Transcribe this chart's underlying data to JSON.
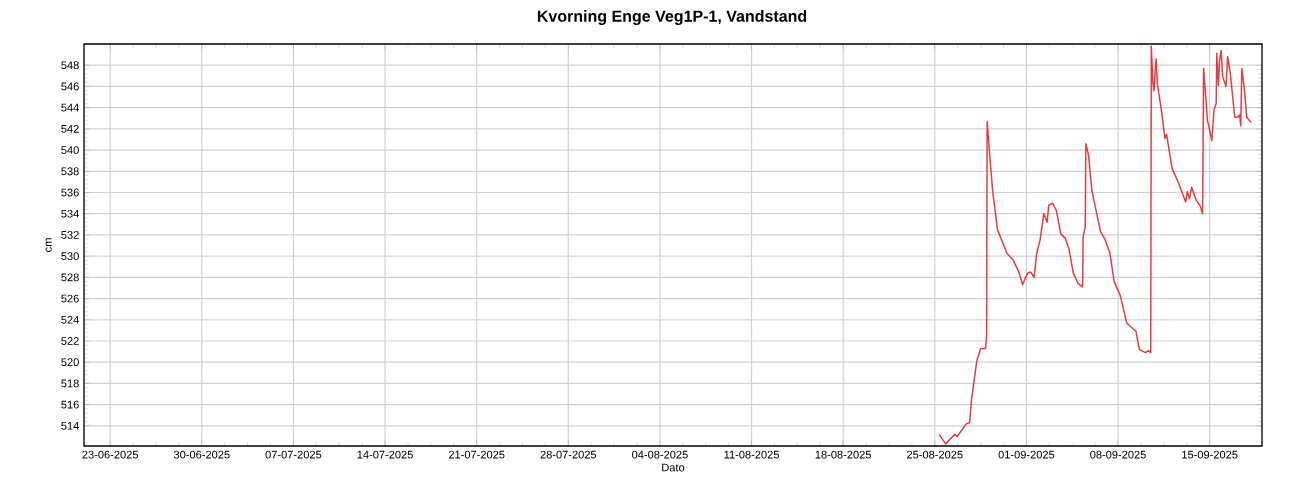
{
  "chart_data": {
    "type": "line",
    "title": "Kvorning Enge Veg1P-1, Vandstand",
    "xlabel": "Dato",
    "ylabel": "cm",
    "x": [
      "2025-08-25T08:00",
      "2025-08-25T20:00",
      "2025-08-26T13:00",
      "2025-08-26T17:00",
      "2025-08-27T10:00",
      "2025-08-27T16:00",
      "2025-08-27T19:00",
      "2025-08-28T05:00",
      "2025-08-28T12:00",
      "2025-08-28T21:00",
      "2025-08-28T23:00",
      "2025-08-29T00:00",
      "2025-08-29T04:00",
      "2025-08-29T10:00",
      "2025-08-29T19:00",
      "2025-08-30T12:00",
      "2025-08-31T00:00",
      "2025-08-31T11:00",
      "2025-08-31T17:00",
      "2025-09-01T02:00",
      "2025-09-01T08:00",
      "2025-09-01T14:00",
      "2025-09-01T19:00",
      "2025-09-02T01:00",
      "2025-09-02T08:00",
      "2025-09-02T14:00",
      "2025-09-02T17:00",
      "2025-09-03T00:00",
      "2025-09-03T07:00",
      "2025-09-03T15:00",
      "2025-09-03T23:00",
      "2025-09-04T06:00",
      "2025-09-04T14:00",
      "2025-09-04T23:00",
      "2025-09-05T07:00",
      "2025-09-05T08:00",
      "2025-09-05T12:00",
      "2025-09-05T13:00",
      "2025-09-05T18:00",
      "2025-09-06T00:00",
      "2025-09-06T09:00",
      "2025-09-06T16:00",
      "2025-09-07T00:00",
      "2025-09-07T09:00",
      "2025-09-07T17:00",
      "2025-09-08T04:00",
      "2025-09-08T16:00",
      "2025-09-09T09:00",
      "2025-09-09T15:00",
      "2025-09-10T02:00",
      "2025-09-10T08:00",
      "2025-09-10T12:00",
      "2025-09-10T13:00",
      "2025-09-10T16:00",
      "2025-09-10T18:00",
      "2025-09-10T20:00",
      "2025-09-10T22:00",
      "2025-09-11T00:00",
      "2025-09-11T08:00",
      "2025-09-11T14:00",
      "2025-09-11T17:00",
      "2025-09-12T03:00",
      "2025-09-12T15:00",
      "2025-09-13T04:00",
      "2025-09-13T07:00",
      "2025-09-13T11:00",
      "2025-09-13T15:00",
      "2025-09-13T23:00",
      "2025-09-14T07:00",
      "2025-09-14T11:00",
      "2025-09-14T13:00",
      "2025-09-14T16:00",
      "2025-09-14T20:00",
      "2025-09-15T04:00",
      "2025-09-15T08:00",
      "2025-09-15T12:00",
      "2025-09-15T13:00",
      "2025-09-15T16:00",
      "2025-09-15T18:00",
      "2025-09-15T21:00",
      "2025-09-16T00:00",
      "2025-09-16T06:00",
      "2025-09-16T09:00",
      "2025-09-16T14:00",
      "2025-09-16T22:00",
      "2025-09-17T03:00",
      "2025-09-17T07:00",
      "2025-09-17T09:00",
      "2025-09-17T11:00",
      "2025-09-17T16:00",
      "2025-09-17T20:00",
      "2025-09-18T04:00"
    ],
    "series": [
      {
        "color": "#e83a3a",
        "values": [
          513.2,
          512.3,
          513.2,
          513.0,
          514.2,
          514.3,
          516.3,
          520.1,
          521.3,
          521.3,
          522.4,
          542.7,
          540.0,
          536.2,
          532.5,
          530.3,
          529.6,
          528.4,
          527.3,
          528.4,
          528.5,
          528.0,
          530.3,
          531.5,
          534.0,
          533.2,
          534.8,
          535.0,
          534.3,
          532.1,
          531.7,
          530.7,
          528.4,
          527.4,
          527.1,
          531.8,
          532.8,
          540.6,
          539.5,
          536.2,
          534.0,
          532.3,
          531.6,
          530.3,
          527.6,
          526.3,
          523.7,
          522.9,
          521.2,
          520.9,
          521.1,
          520.9,
          549.8,
          546.3,
          545.6,
          547.5,
          548.6,
          546.3,
          543.6,
          541.1,
          541.5,
          538.3,
          536.9,
          535.1,
          536.1,
          535.4,
          536.5,
          535.3,
          534.7,
          534.0,
          547.7,
          545.6,
          542.8,
          540.9,
          543.8,
          544.4,
          549.1,
          546.1,
          548.3,
          549.4,
          546.9,
          546.0,
          548.8,
          547.2,
          543.1,
          543.1,
          543.3,
          542.3,
          547.7,
          545.6,
          543.1,
          542.6
        ]
      }
    ],
    "xlim": [
      "2025-06-21",
      "2025-09-19"
    ],
    "xticks": [
      {
        "value": "2025-06-23",
        "label": "23-06-2025"
      },
      {
        "value": "2025-06-30",
        "label": "30-06-2025"
      },
      {
        "value": "2025-07-07",
        "label": "07-07-2025"
      },
      {
        "value": "2025-07-14",
        "label": "14-07-2025"
      },
      {
        "value": "2025-07-21",
        "label": "21-07-2025"
      },
      {
        "value": "2025-07-28",
        "label": "28-07-2025"
      },
      {
        "value": "2025-08-04",
        "label": "04-08-2025"
      },
      {
        "value": "2025-08-11",
        "label": "11-08-2025"
      },
      {
        "value": "2025-08-18",
        "label": "18-08-2025"
      },
      {
        "value": "2025-08-25",
        "label": "25-08-2025"
      },
      {
        "value": "2025-09-01",
        "label": "01-09-2025"
      },
      {
        "value": "2025-09-08",
        "label": "08-09-2025"
      },
      {
        "value": "2025-09-15",
        "label": "15-09-2025"
      }
    ],
    "ylim": [
      512.1,
      550.0
    ],
    "yticks": [
      514,
      516,
      518,
      520,
      522,
      524,
      526,
      528,
      530,
      532,
      534,
      536,
      538,
      540,
      542,
      544,
      546,
      548
    ],
    "grid": true,
    "marker": "none",
    "line_style": "solid"
  }
}
